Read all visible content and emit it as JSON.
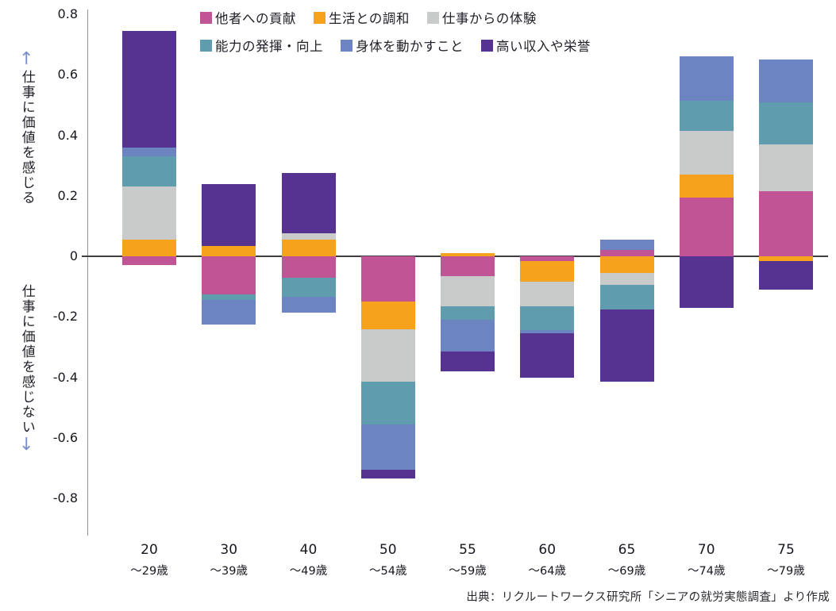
{
  "chart_data": {
    "type": "bar",
    "stacked": true,
    "categories": [
      {
        "label": "20",
        "sub": "～29歳"
      },
      {
        "label": "30",
        "sub": "～39歳"
      },
      {
        "label": "40",
        "sub": "～49歳"
      },
      {
        "label": "50",
        "sub": "～54歳"
      },
      {
        "label": "55",
        "sub": "～59歳"
      },
      {
        "label": "60",
        "sub": "～64歳"
      },
      {
        "label": "65",
        "sub": "～69歳"
      },
      {
        "label": "70",
        "sub": "～74歳"
      },
      {
        "label": "75",
        "sub": "～79歳"
      }
    ],
    "series": [
      {
        "name": "他者への貢献",
        "color": "#c05495",
        "values": [
          -0.03,
          -0.125,
          -0.07,
          -0.15,
          -0.065,
          -0.015,
          0.02,
          0.195,
          0.215
        ]
      },
      {
        "name": "生活との調和",
        "color": "#f6a21c",
        "values": [
          0.055,
          0.035,
          0.055,
          -0.09,
          0.01,
          -0.07,
          -0.055,
          0.075,
          -0.015
        ]
      },
      {
        "name": "仕事からの体験",
        "color": "#c9cbcb",
        "values": [
          0.175,
          0.0,
          0.02,
          -0.175,
          -0.1,
          -0.08,
          -0.04,
          0.145,
          0.155
        ]
      },
      {
        "name": "能力の発揮・向上",
        "color": "#5f9cae",
        "values": [
          0.1,
          -0.02,
          -0.065,
          -0.14,
          -0.045,
          -0.08,
          -0.08,
          0.1,
          0.14
        ]
      },
      {
        "name": "身体を動かすこと",
        "color": "#6d84c3",
        "values": [
          0.03,
          -0.08,
          -0.05,
          -0.15,
          -0.105,
          -0.01,
          0.035,
          0.145,
          0.14
        ]
      },
      {
        "name": "高い収入や栄誉",
        "color": "#563390",
        "values": [
          0.385,
          0.205,
          0.2,
          -0.03,
          -0.065,
          -0.145,
          -0.24,
          -0.17,
          -0.095
        ]
      }
    ],
    "ylim": [
      -0.8,
      0.8
    ],
    "yticks": [
      "0.8",
      "0.6",
      "0.4",
      "0.2",
      "0",
      "-0.2",
      "-0.4",
      "-0.6",
      "-0.8"
    ],
    "grid": false,
    "legend_position": "top",
    "title": "",
    "xlabel": "",
    "ylabel": ""
  },
  "annotations": {
    "up_arrow": "↑",
    "upper_text": "仕事に価値を感じる",
    "lower_text": "仕事に価値を感じない",
    "down_arrow": "↓"
  },
  "source": {
    "text": "出典：リクルートワークス研究所「シニアの就労実態調査」より作成"
  }
}
